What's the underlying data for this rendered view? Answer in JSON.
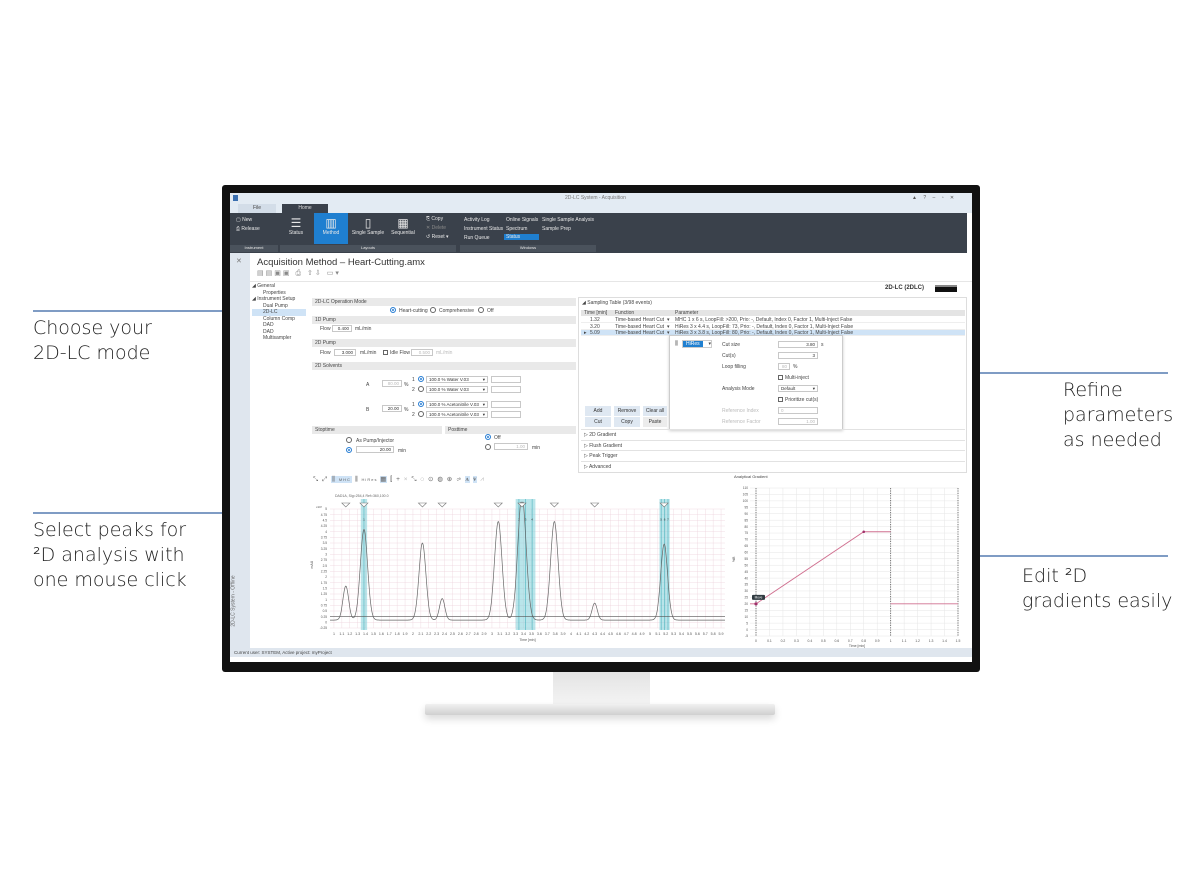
{
  "annotations": {
    "mode": [
      "Choose your",
      "2D-LC mode"
    ],
    "peaks": [
      "Select peaks for",
      "²D analysis with",
      "one mouse click"
    ],
    "refine": [
      "Refine",
      "parameters",
      "as needed"
    ],
    "gradient": [
      "Edit ²D",
      "gradients easily"
    ]
  },
  "window": {
    "title": "2D-LC System - Acquisition",
    "controls": [
      "▲",
      "?",
      "–",
      "▫",
      "✕"
    ]
  },
  "tabs": [
    "File",
    "Home"
  ],
  "ribbon": {
    "instrument": {
      "label": "Instrument",
      "items": [
        "New",
        "Release"
      ]
    },
    "layouts": {
      "label": "Layouts",
      "items": [
        "Status",
        "Method",
        "Single Sample",
        "Sequential"
      ],
      "edit": [
        "Copy",
        "Delete",
        "Reset ▾"
      ]
    },
    "windows": {
      "label": "Windows",
      "items": [
        "Activity Log",
        "Instrument Status",
        "Run Queue",
        "Online Signals",
        "Spectrum",
        "Status",
        "Single Sample Analysis",
        "Sample Prep"
      ]
    }
  },
  "doc": {
    "title": "Acquisition Method – Heart-Cutting.amx",
    "module": "2D-LC (2DLC)"
  },
  "tree": [
    "General",
    "Properties",
    "Instrument Setup",
    "Dual Pump",
    "2D-LC",
    "Column Comp",
    "DAD",
    "DAD",
    "Multisampler"
  ],
  "side_strip": "2D-LC System - Offline",
  "status_bar": "Current user: SYSTEM, Active project: myProject",
  "form": {
    "mode": {
      "title": "2D-LC Operation Mode",
      "options": [
        "Heart-cutting",
        "Comprehensive",
        "Off"
      ],
      "selected": "Heart-cutting"
    },
    "pump1": {
      "title": "1D Pump",
      "flow_label": "Flow",
      "flow": "0.400",
      "unit": "mL/min"
    },
    "pump2": {
      "title": "2D Pump",
      "flow_label": "Flow",
      "flow": "3.000",
      "unit": "mL/min",
      "idle_label": "Idle Flow",
      "idle": "0.500",
      "idle_checked": false
    },
    "solvents": {
      "title": "2D Solvents",
      "A": {
        "label": "A",
        "pct": "80.00",
        "opt1": "100.0 % Water V.03",
        "opt2": "100.0 % Water V.03"
      },
      "B": {
        "label": "B",
        "pct": "20.00",
        "opt1": "100.0 % Acetonitrile V.03",
        "opt2": "100.0 % Acetonitrile V.03"
      },
      "pct_unit": "%",
      "n1": "1",
      "n2": "2"
    },
    "stoptime": {
      "title": "Stoptime",
      "as_pump": "As Pump/Injector",
      "value": "20.00",
      "unit": "min"
    },
    "posttime": {
      "title": "Posttime",
      "off": "Off",
      "value": "1.00",
      "unit": "min"
    }
  },
  "sampling": {
    "title": "Sampling Table (3/98 events)",
    "columns": [
      "Time [min]",
      "Function",
      "Parameter"
    ],
    "rows": [
      [
        "1.32",
        "Time-based Heart Cut",
        "MHC 1 x 6 s, LoopFill: >200, Prio: -, Default, Index 0, Factor 1, Multi-Inject False"
      ],
      [
        "3.20",
        "Time-based Heart Cut",
        "HiRes 3 x 4.4 s, LoopFill: 73, Prio: -, Default, Index 0, Factor 1, Multi-Inject False"
      ],
      [
        "5.09",
        "Time-based Heart Cut",
        "HiRes 3 x 3.8 s, LoopFill: 80, Prio: -, Default, Index 0, Factor 1, Multi-Inject False"
      ]
    ],
    "buttons": [
      "Add",
      "Remove",
      "Clear all",
      "Cut",
      "Copy",
      "Paste"
    ],
    "sections": [
      "2D Gradient",
      "Flush Gradient",
      "Peak Trigger",
      "Advanced"
    ],
    "popup": {
      "mode": "HiRes",
      "cut_size_label": "Cut size",
      "cut_size": "3.80",
      "cut_size_unit": "s",
      "cuts_label": "Cut(s)",
      "cuts": "3",
      "loop_label": "Loop filling",
      "loop": "80",
      "loop_unit": "%",
      "multi_inject": "Multi-inject",
      "analysis_label": "Analysis Mode",
      "analysis": "Default",
      "prioritize": "Prioritize cut(s)",
      "ref_index_label": "Reference Index",
      "ref_index": "0",
      "ref_factor_label": "Reference Factor",
      "ref_factor": "1.00"
    }
  },
  "chart_toolbar": [
    "MHC",
    "HiRes"
  ],
  "chart_data": [
    {
      "type": "line",
      "subtitle": "DAD1A, Sig=254,4 Ref=360,100.0",
      "ylabel": "mAU",
      "y_multiplier": "x10³",
      "xlabel": "Time [min]",
      "xlim": [
        0.95,
        5.95
      ],
      "ylim": [
        -0.25,
        5
      ],
      "yticks": [
        "-0.25",
        "0",
        "0.25",
        "0.5",
        "0.75",
        "1",
        "1.25",
        "1.5",
        "1.75",
        "2",
        "2.25",
        "2.5",
        "2.75",
        "3",
        "3.25",
        "3.5",
        "3.75",
        "4",
        "4.25",
        "4.5",
        "4.75",
        "5"
      ],
      "xticks": [
        "1",
        "1.1",
        "1.2",
        "1.3",
        "1.4",
        "1.5",
        "1.6",
        "1.7",
        "1.8",
        "1.9",
        "2",
        "2.1",
        "2.2",
        "2.3",
        "2.4",
        "2.5",
        "2.6",
        "2.7",
        "2.8",
        "2.9",
        "3",
        "3.1",
        "3.2",
        "3.3",
        "3.4",
        "3.5",
        "3.6",
        "3.7",
        "3.8",
        "3.9",
        "4",
        "4.1",
        "4.2",
        "4.3",
        "4.4",
        "4.5",
        "4.6",
        "4.7",
        "4.8",
        "4.9",
        "5",
        "5.1",
        "5.2",
        "5.3",
        "5.4",
        "5.5",
        "5.6",
        "5.7",
        "5.8",
        "5.9"
      ],
      "peaks": [
        {
          "time": 1.15,
          "height": 1.5
        },
        {
          "time": 1.38,
          "height": 4.0
        },
        {
          "time": 2.12,
          "height": 3.4
        },
        {
          "time": 2.37,
          "height": 0.95
        },
        {
          "time": 3.08,
          "height": 4.35
        },
        {
          "time": 3.38,
          "height": 5.5
        },
        {
          "time": 3.79,
          "height": 4.35
        },
        {
          "time": 4.3,
          "height": 0.75
        },
        {
          "time": 5.18,
          "height": 3.35
        }
      ],
      "baseline": 0.1,
      "threshold": 0.25,
      "cut_windows": [
        {
          "from": 1.34,
          "to": 1.42,
          "labels": [
            "1"
          ]
        },
        {
          "from": 3.3,
          "to": 3.55,
          "labels": [
            "2",
            "3",
            "4"
          ]
        },
        {
          "from": 5.12,
          "to": 5.25,
          "labels": [
            "5",
            "6",
            "7"
          ]
        }
      ]
    },
    {
      "type": "line",
      "title": "Analytical Gradient",
      "ylabel": "%B",
      "xlabel": "Time [min]",
      "xlim": [
        0,
        1.5
      ],
      "ylim": [
        -5,
        110
      ],
      "xticks": [
        "0",
        "0.1",
        "0.2",
        "0.3",
        "0.4",
        "0.5",
        "0.6",
        "0.7",
        "0.8",
        "0.9",
        "1",
        "1.1",
        "1.2",
        "1.3",
        "1.4",
        "1.5"
      ],
      "yticks": [
        "-5",
        "0",
        "5",
        "10",
        "15",
        "20",
        "25",
        "30",
        "35",
        "40",
        "45",
        "50",
        "55",
        "60",
        "65",
        "70",
        "75",
        "80",
        "85",
        "90",
        "95",
        "100",
        "105",
        "110"
      ],
      "series": [
        {
          "x": [
            0,
            0.8,
            1.0
          ],
          "y": [
            20,
            76,
            76
          ]
        },
        {
          "x": [
            1.0,
            1.5
          ],
          "y": [
            20,
            20
          ]
        }
      ],
      "tooltip": "Move",
      "line_color": "#d07090"
    }
  ]
}
